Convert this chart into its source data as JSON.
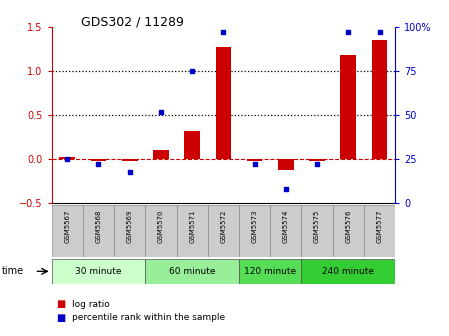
{
  "title": "GDS302 / 11289",
  "samples": [
    "GSM5567",
    "GSM5568",
    "GSM5569",
    "GSM5570",
    "GSM5571",
    "GSM5572",
    "GSM5573",
    "GSM5574",
    "GSM5575",
    "GSM5576",
    "GSM5577"
  ],
  "log_ratio": [
    0.02,
    -0.02,
    -0.02,
    0.1,
    0.32,
    1.27,
    -0.02,
    -0.12,
    -0.02,
    1.18,
    1.35
  ],
  "percentile_rank": [
    25,
    22,
    18,
    52,
    75,
    97,
    22,
    8,
    22,
    97,
    97
  ],
  "ylim_left": [
    -0.5,
    1.5
  ],
  "ylim_right": [
    0,
    100
  ],
  "yticks_left": [
    -0.5,
    0.0,
    0.5,
    1.0,
    1.5
  ],
  "yticks_right": [
    0,
    25,
    50,
    75,
    100
  ],
  "yticklabels_right": [
    "0",
    "25",
    "50",
    "75",
    "100%"
  ],
  "bar_color": "#cc0000",
  "point_color": "#0000cc",
  "dashed_color": "#cc0000",
  "dotted_color": "#000000",
  "groups": [
    {
      "label": "30 minute",
      "start": 0,
      "end": 3
    },
    {
      "label": "60 minute",
      "start": 3,
      "end": 6
    },
    {
      "label": "120 minute",
      "start": 6,
      "end": 8
    },
    {
      "label": "240 minute",
      "start": 8,
      "end": 11
    }
  ],
  "group_colors": [
    "#ccffcc",
    "#99ee99",
    "#55dd55",
    "#33cc33"
  ],
  "sample_box_color": "#cccccc",
  "sample_box_edge": "#888888",
  "time_label": "time",
  "background_color": "#ffffff",
  "legend_log_ratio": "log ratio",
  "legend_pct": "percentile rank within the sample"
}
